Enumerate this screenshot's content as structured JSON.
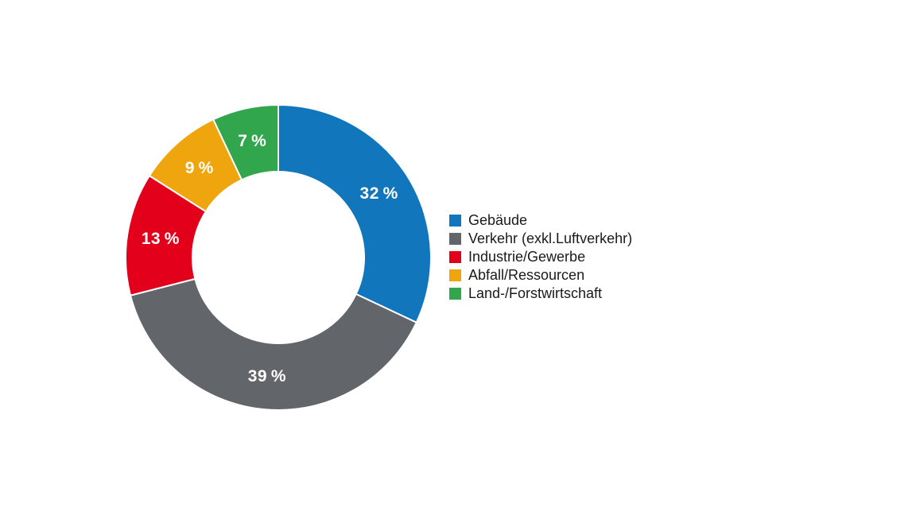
{
  "page": {
    "background": "#ffffff"
  },
  "chart_data": {
    "type": "pie",
    "subtype": "donut",
    "categories": [
      "Gebäude",
      "Verkehr (exkl.Luftverkehr)",
      "Industrie/Gewerbe",
      "Abfall/Ressourcen",
      "Land-/Forstwirtschaft"
    ],
    "values": [
      32,
      39,
      13,
      9,
      7
    ],
    "unit": "%",
    "slice_labels": [
      "32 %",
      "39 %",
      "13 %",
      "9 %",
      "7 %"
    ],
    "colors": [
      "#1176BC",
      "#626569",
      "#E2001A",
      "#EFA50E",
      "#32A64C"
    ],
    "slice_ids": [
      "gebaeude",
      "verkehr",
      "industrie-gewerbe",
      "abfall-ressourcen",
      "land-forstwirtschaft"
    ],
    "start_angle_deg": 0,
    "direction": "clockwise",
    "legend_position": "right",
    "slice_label_color": "#ffffff",
    "separator_color": "#ffffff",
    "legend_text_color": "#1a1a1a"
  }
}
